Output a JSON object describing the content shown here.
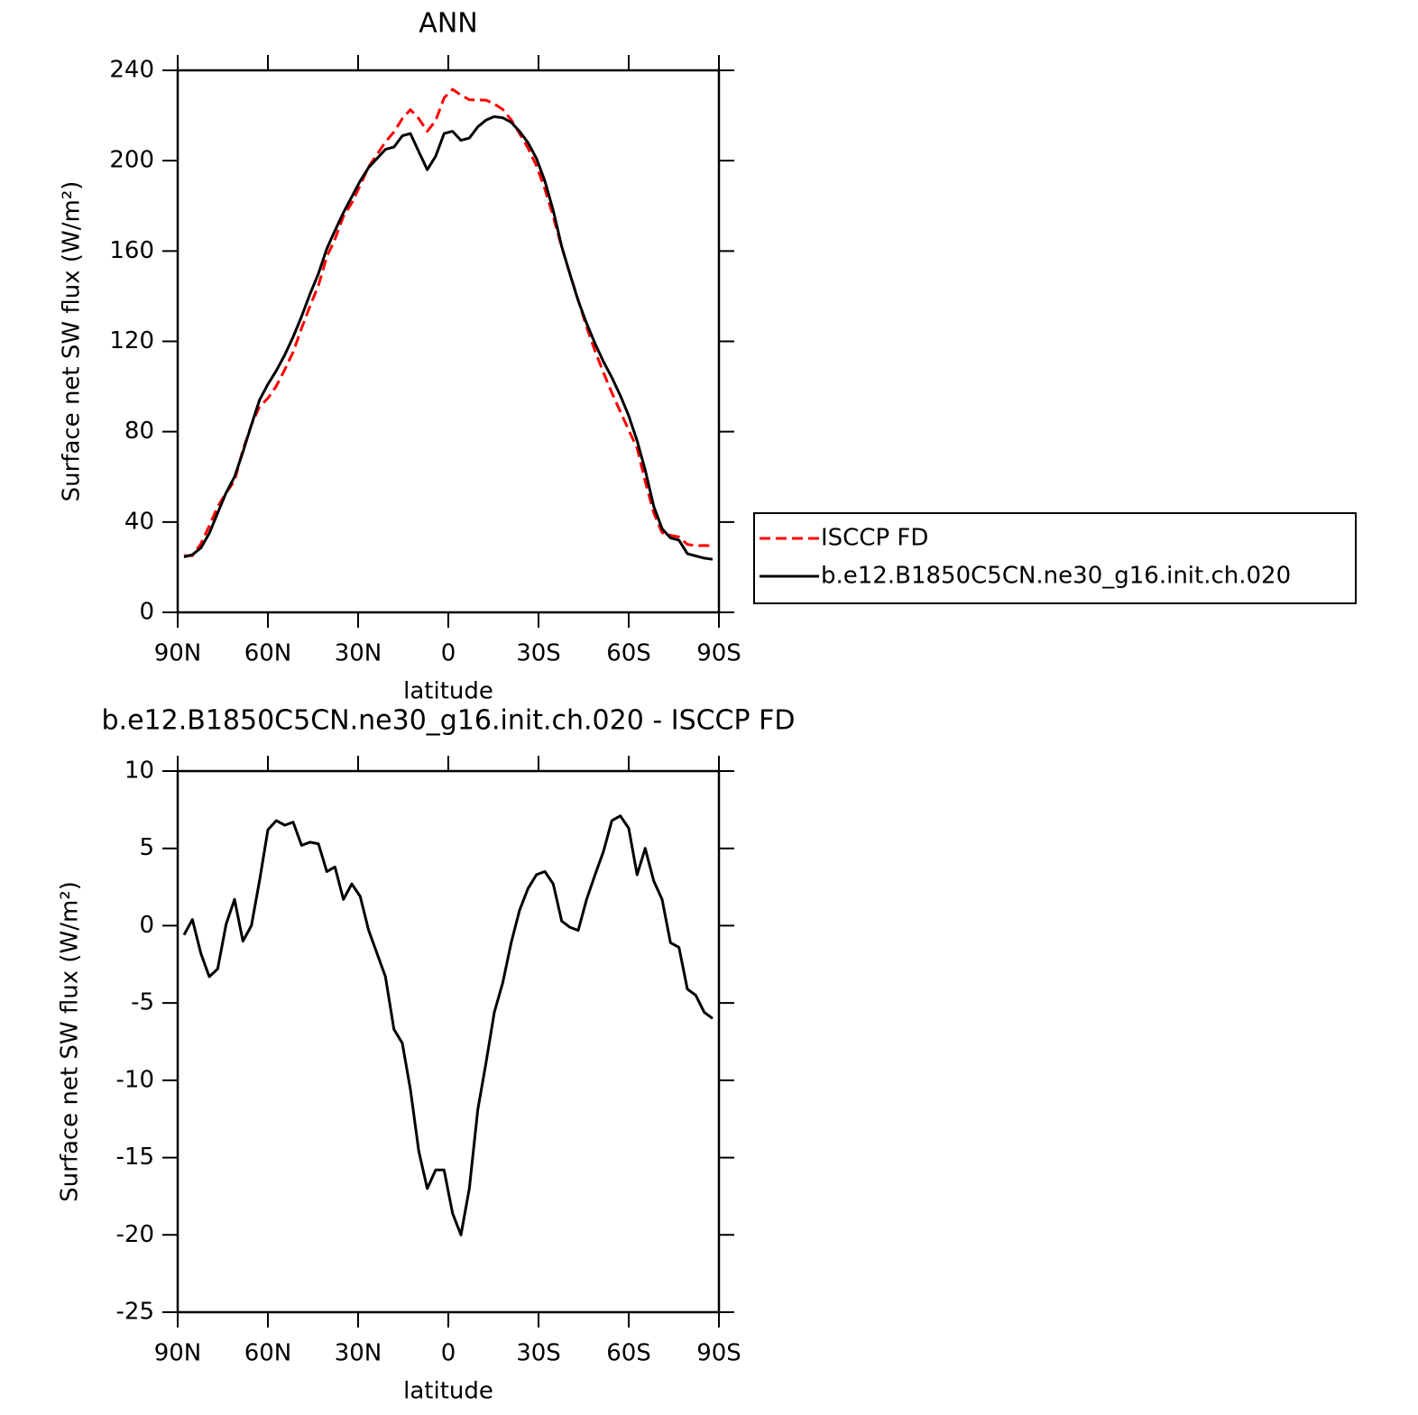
{
  "chart_data": [
    {
      "type": "line",
      "title": "ANN",
      "xlabel": "latitude",
      "ylabel": "Surface net SW flux (W/m²)",
      "x": [
        87.9,
        85.1,
        82.3,
        79.5,
        76.7,
        73.9,
        71.1,
        68.3,
        65.5,
        62.8,
        60.0,
        57.2,
        54.4,
        51.6,
        48.8,
        46.0,
        43.2,
        40.4,
        37.7,
        34.9,
        32.1,
        29.3,
        26.5,
        23.7,
        20.9,
        18.1,
        15.3,
        12.6,
        9.8,
        7.0,
        4.2,
        1.4,
        -1.4,
        -4.2,
        -7.0,
        -9.8,
        -12.6,
        -15.3,
        -18.1,
        -20.9,
        -23.7,
        -26.5,
        -29.3,
        -32.1,
        -34.9,
        -37.7,
        -40.4,
        -43.2,
        -46.0,
        -48.8,
        -51.6,
        -54.4,
        -57.2,
        -60.0,
        -62.8,
        -65.5,
        -68.3,
        -71.1,
        -73.9,
        -76.7,
        -79.5,
        -82.3,
        -85.1,
        -87.9
      ],
      "series": [
        {
          "name": "ISCCP FD",
          "color": "#ff0000",
          "linestyle": "dashed",
          "values": [
            25.1,
            25.1,
            30.3,
            38.3,
            46.8,
            52.9,
            58.3,
            72,
            83,
            91.1,
            94.8,
            100.2,
            107.5,
            115.3,
            125.8,
            135.6,
            144.7,
            157.5,
            165.2,
            175.3,
            181.3,
            189.1,
            197.3,
            202.8,
            208.3,
            212.7,
            218.6,
            222.6,
            218.6,
            213,
            217.8,
            227.8,
            231.6,
            229,
            227,
            226.9,
            226.8,
            225.1,
            222.7,
            218.1,
            212,
            205.6,
            197.7,
            187.5,
            175.3,
            161.7,
            150.1,
            138.3,
            126.3,
            115.7,
            106.2,
            97.2,
            88.9,
            80.7,
            72.7,
            58,
            44.1,
            35.3,
            34.1,
            33.4,
            30.1,
            29.5,
            29.6,
            29.5
          ]
        },
        {
          "name": "b.e12.B1850C5CN.ne30_g16.init.ch.020",
          "color": "#000000",
          "linestyle": "solid",
          "values": [
            24.5,
            25.5,
            28.5,
            35,
            44,
            53,
            60,
            71,
            83,
            94,
            101,
            107,
            114,
            122,
            131,
            141,
            150,
            161,
            169,
            177,
            184,
            191,
            197,
            201,
            205,
            206,
            211,
            212,
            204,
            196,
            202,
            212,
            213,
            209,
            210,
            215,
            218,
            219.5,
            219,
            217,
            213,
            208,
            201,
            191,
            178,
            162,
            150,
            138,
            128,
            119,
            111,
            104,
            96,
            87,
            76,
            63,
            47,
            37,
            33,
            32,
            26,
            25,
            24,
            23.5
          ]
        }
      ],
      "xlim": [
        90,
        -90
      ],
      "xticks": [
        {
          "value": 90,
          "label": "90N"
        },
        {
          "value": 60,
          "label": "60N"
        },
        {
          "value": 30,
          "label": "30N"
        },
        0,
        {
          "value": -30,
          "label": "30S"
        },
        {
          "value": -60,
          "label": "60S"
        },
        {
          "value": -90,
          "label": "90S"
        }
      ],
      "ylim": [
        0,
        240
      ],
      "yticks": [
        0,
        40,
        80,
        120,
        160,
        200,
        240
      ],
      "legend": "right"
    },
    {
      "type": "line",
      "title": "b.e12.B1850C5CN.ne30_g16.init.ch.020 - ISCCP FD",
      "xlabel": "latitude",
      "ylabel": "Surface net SW flux (W/m²)",
      "x": [
        87.9,
        85.1,
        82.3,
        79.5,
        76.7,
        73.9,
        71.1,
        68.3,
        65.5,
        62.8,
        60.0,
        57.2,
        54.4,
        51.6,
        48.8,
        46.0,
        43.2,
        40.4,
        37.7,
        34.9,
        32.1,
        29.3,
        26.5,
        23.7,
        20.9,
        18.1,
        15.3,
        12.6,
        9.8,
        7.0,
        4.2,
        1.4,
        -1.4,
        -4.2,
        -7.0,
        -9.8,
        -12.6,
        -15.3,
        -18.1,
        -20.9,
        -23.7,
        -26.5,
        -29.3,
        -32.1,
        -34.9,
        -37.7,
        -40.4,
        -43.2,
        -46.0,
        -48.8,
        -51.6,
        -54.4,
        -57.2,
        -60.0,
        -62.8,
        -65.5,
        -68.3,
        -71.1,
        -73.9,
        -76.7,
        -79.5,
        -82.3,
        -85.1,
        -87.9
      ],
      "series": [
        {
          "color": "#000000",
          "linestyle": "solid",
          "values": [
            -0.6,
            0.4,
            -1.8,
            -3.3,
            -2.8,
            0.1,
            1.7,
            -1.0,
            0.0,
            2.9,
            6.2,
            6.8,
            6.5,
            6.7,
            5.2,
            5.4,
            5.3,
            3.5,
            3.8,
            1.7,
            2.7,
            1.9,
            -0.3,
            -1.8,
            -3.3,
            -6.7,
            -7.6,
            -10.6,
            -14.6,
            -17.0,
            -15.8,
            -15.8,
            -18.6,
            -20.0,
            -17.0,
            -11.9,
            -8.8,
            -5.6,
            -3.7,
            -1.1,
            1.0,
            2.4,
            3.3,
            3.5,
            2.7,
            0.3,
            -0.1,
            -0.3,
            1.7,
            3.3,
            4.8,
            6.8,
            7.1,
            6.3,
            3.3,
            5.0,
            2.9,
            1.7,
            -1.1,
            -1.4,
            -4.1,
            -4.5,
            -5.6,
            -6.0
          ]
        }
      ],
      "xlim": [
        90,
        -90
      ],
      "xticks": [
        {
          "value": 90,
          "label": "90N"
        },
        {
          "value": 60,
          "label": "60N"
        },
        {
          "value": 30,
          "label": "30N"
        },
        0,
        {
          "value": -30,
          "label": "30S"
        },
        {
          "value": -60,
          "label": "60S"
        },
        {
          "value": -90,
          "label": "90S"
        }
      ],
      "ylim": [
        -25,
        10
      ],
      "yticks": [
        -25,
        -20,
        -15,
        -10,
        -5,
        0,
        5,
        10
      ]
    }
  ]
}
